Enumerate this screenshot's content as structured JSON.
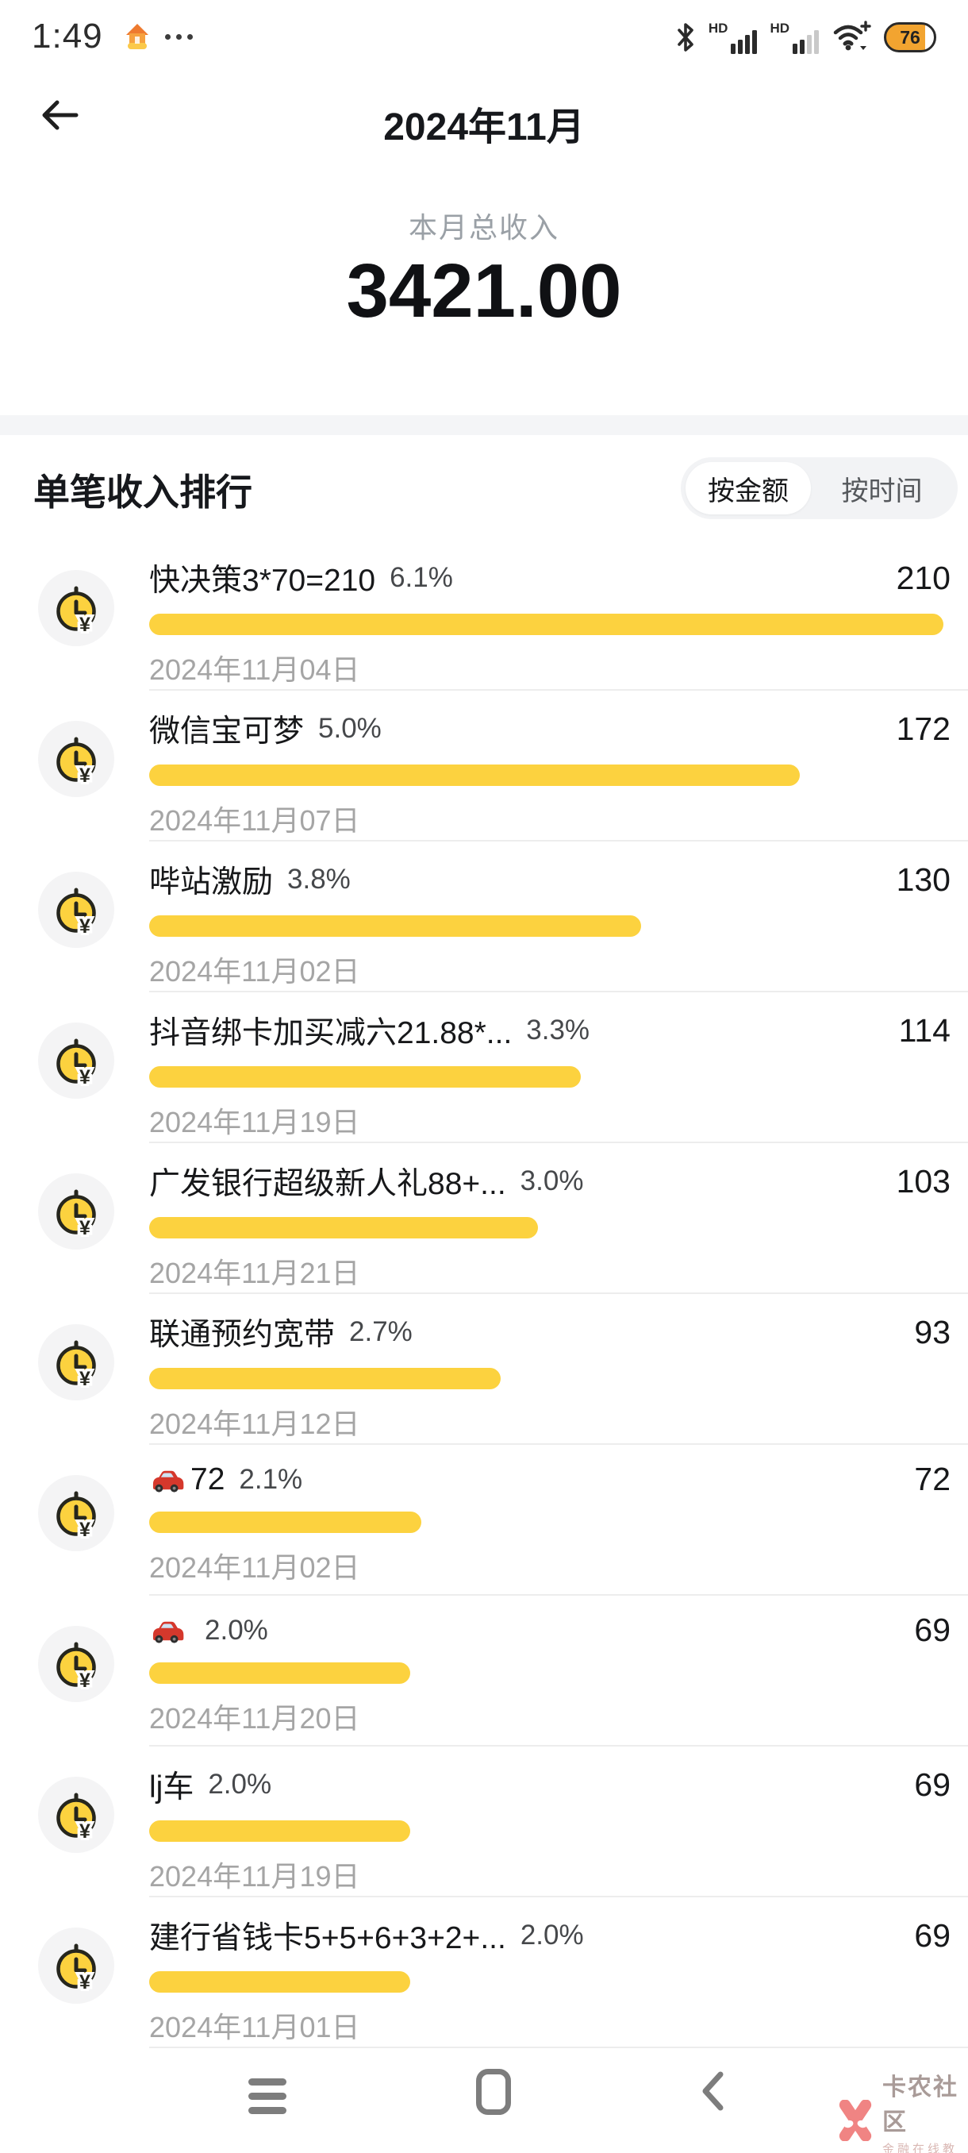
{
  "status_bar": {
    "time": "1:49",
    "battery_percent": "76",
    "hd_label_1": "HD",
    "hd_label_2": "HD",
    "icons": [
      "app-chip-icon",
      "more-dots-icon",
      "bluetooth-icon",
      "signal-bars-icon",
      "signal-bars-2-icon",
      "wifi-plus-icon",
      "battery-icon"
    ]
  },
  "header": {
    "title": "2024年11月",
    "back_icon": "back-arrow-icon"
  },
  "summary": {
    "label": "本月总收入",
    "amount": "3421.00"
  },
  "ranking": {
    "title": "单笔收入排行",
    "toggle": {
      "by_amount": "按金额",
      "by_time": "按时间",
      "selected": "按金额"
    },
    "max_value": 210,
    "bar_color": "#fcd23f",
    "items": [
      {
        "icon": "clock-money-icon",
        "title": "快决策3*70=210",
        "percent": "6.1%",
        "value": 210,
        "value_label": "210",
        "date": "2024年11月04日"
      },
      {
        "icon": "clock-money-icon",
        "title": "微信宝可梦",
        "percent": "5.0%",
        "value": 172,
        "value_label": "172",
        "date": "2024年11月07日"
      },
      {
        "icon": "clock-money-icon",
        "title": "哔站激励",
        "percent": "3.8%",
        "value": 130,
        "value_label": "130",
        "date": "2024年11月02日"
      },
      {
        "icon": "clock-money-icon",
        "title": "抖音绑卡加买减六21.88*...",
        "percent": "3.3%",
        "value": 114,
        "value_label": "114",
        "date": "2024年11月19日"
      },
      {
        "icon": "clock-money-icon",
        "title": "广发银行超级新人礼88+...",
        "percent": "3.0%",
        "value": 103,
        "value_label": "103",
        "date": "2024年11月21日"
      },
      {
        "icon": "clock-money-icon",
        "title": "联通预约宽带",
        "percent": "2.7%",
        "value": 93,
        "value_label": "93",
        "date": "2024年11月12日"
      },
      {
        "icon": "clock-money-icon",
        "title_icon": "red-car-icon",
        "title": "72",
        "percent": "2.1%",
        "value": 72,
        "value_label": "72",
        "date": "2024年11月02日"
      },
      {
        "icon": "clock-money-icon",
        "title_icon": "red-car-icon",
        "title": "",
        "percent": "2.0%",
        "value": 69,
        "value_label": "69",
        "date": "2024年11月20日"
      },
      {
        "icon": "clock-money-icon",
        "title": "lj车",
        "percent": "2.0%",
        "value": 69,
        "value_label": "69",
        "date": "2024年11月19日"
      },
      {
        "icon": "clock-money-icon",
        "title": "建行省钱卡5+5+6+3+2+...",
        "percent": "2.0%",
        "value": 69,
        "value_label": "69",
        "date": "2024年11月01日"
      }
    ]
  },
  "nav": {
    "icons": [
      "menu-icon",
      "home-square-icon",
      "back-chevron-icon"
    ]
  },
  "watermark": {
    "title": "卡农社区",
    "subtitle": "金融在线教育",
    "logo_color": "#ee6f6e"
  },
  "colors": {
    "bar_yellow": "#fcd23f",
    "band_gray": "#f4f5f7",
    "battery_orange": "#f2a430",
    "date_gray": "#a5a5a5"
  }
}
